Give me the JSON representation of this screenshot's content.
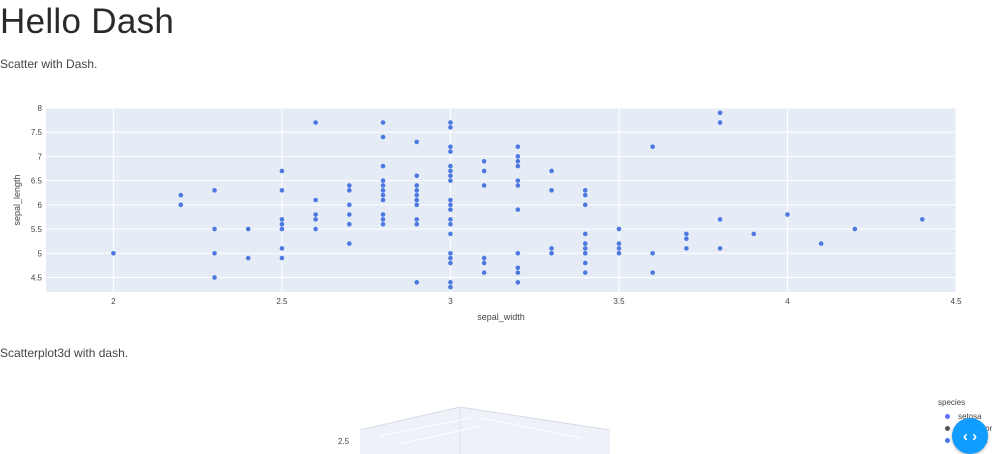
{
  "page": {
    "title": "Hello Dash",
    "subtitle1": "Scatter with Dash.",
    "subtitle2": "Scatterplot3d with dash."
  },
  "chart_data": [
    {
      "type": "scatter",
      "title": "",
      "xlabel": "sepal_width",
      "ylabel": "sepal_length",
      "xlim": [
        1.8,
        4.5
      ],
      "ylim": [
        4.2,
        8.0
      ],
      "x_ticks": [
        2,
        2.5,
        3,
        3.5,
        4,
        4.5
      ],
      "y_ticks": [
        4.5,
        5,
        5.5,
        6,
        6.5,
        7,
        7.5,
        8
      ],
      "grid": true,
      "color": "#4c78e0",
      "points": [
        [
          2.0,
          5.0
        ],
        [
          2.2,
          6.0
        ],
        [
          2.2,
          6.2
        ],
        [
          2.3,
          4.5
        ],
        [
          2.3,
          5.0
        ],
        [
          2.3,
          5.5
        ],
        [
          2.3,
          6.3
        ],
        [
          2.4,
          4.9
        ],
        [
          2.4,
          5.5
        ],
        [
          2.5,
          4.9
        ],
        [
          2.5,
          5.1
        ],
        [
          2.5,
          5.5
        ],
        [
          2.5,
          5.6
        ],
        [
          2.5,
          5.7
        ],
        [
          2.5,
          6.3
        ],
        [
          2.5,
          6.7
        ],
        [
          2.6,
          5.5
        ],
        [
          2.6,
          5.7
        ],
        [
          2.6,
          5.8
        ],
        [
          2.6,
          6.1
        ],
        [
          2.6,
          7.7
        ],
        [
          2.7,
          5.2
        ],
        [
          2.7,
          5.6
        ],
        [
          2.7,
          5.8
        ],
        [
          2.7,
          6.0
        ],
        [
          2.7,
          6.3
        ],
        [
          2.7,
          6.4
        ],
        [
          2.8,
          5.6
        ],
        [
          2.8,
          5.7
        ],
        [
          2.8,
          5.8
        ],
        [
          2.8,
          6.1
        ],
        [
          2.8,
          6.2
        ],
        [
          2.8,
          6.3
        ],
        [
          2.8,
          6.4
        ],
        [
          2.8,
          6.5
        ],
        [
          2.8,
          6.8
        ],
        [
          2.8,
          7.4
        ],
        [
          2.8,
          7.7
        ],
        [
          2.9,
          4.4
        ],
        [
          2.9,
          5.6
        ],
        [
          2.9,
          5.7
        ],
        [
          2.9,
          6.0
        ],
        [
          2.9,
          6.1
        ],
        [
          2.9,
          6.2
        ],
        [
          2.9,
          6.3
        ],
        [
          2.9,
          6.4
        ],
        [
          2.9,
          6.6
        ],
        [
          2.9,
          7.3
        ],
        [
          3.0,
          4.3
        ],
        [
          3.0,
          4.4
        ],
        [
          3.0,
          4.8
        ],
        [
          3.0,
          4.9
        ],
        [
          3.0,
          5.0
        ],
        [
          3.0,
          5.4
        ],
        [
          3.0,
          5.6
        ],
        [
          3.0,
          5.7
        ],
        [
          3.0,
          5.9
        ],
        [
          3.0,
          6.0
        ],
        [
          3.0,
          6.1
        ],
        [
          3.0,
          6.5
        ],
        [
          3.0,
          6.6
        ],
        [
          3.0,
          6.7
        ],
        [
          3.0,
          6.8
        ],
        [
          3.0,
          7.1
        ],
        [
          3.0,
          7.2
        ],
        [
          3.0,
          7.6
        ],
        [
          3.0,
          7.7
        ],
        [
          3.1,
          4.6
        ],
        [
          3.1,
          4.8
        ],
        [
          3.1,
          4.9
        ],
        [
          3.1,
          6.4
        ],
        [
          3.1,
          6.7
        ],
        [
          3.1,
          6.9
        ],
        [
          3.2,
          4.4
        ],
        [
          3.2,
          4.6
        ],
        [
          3.2,
          4.7
        ],
        [
          3.2,
          5.0
        ],
        [
          3.2,
          5.9
        ],
        [
          3.2,
          6.4
        ],
        [
          3.2,
          6.5
        ],
        [
          3.2,
          6.8
        ],
        [
          3.2,
          6.9
        ],
        [
          3.2,
          7.0
        ],
        [
          3.2,
          7.2
        ],
        [
          3.3,
          5.0
        ],
        [
          3.3,
          5.1
        ],
        [
          3.3,
          6.3
        ],
        [
          3.3,
          6.7
        ],
        [
          3.4,
          4.6
        ],
        [
          3.4,
          4.8
        ],
        [
          3.4,
          5.0
        ],
        [
          3.4,
          5.1
        ],
        [
          3.4,
          5.2
        ],
        [
          3.4,
          5.4
        ],
        [
          3.4,
          6.0
        ],
        [
          3.4,
          6.2
        ],
        [
          3.4,
          6.3
        ],
        [
          3.5,
          5.0
        ],
        [
          3.5,
          5.1
        ],
        [
          3.5,
          5.2
        ],
        [
          3.5,
          5.5
        ],
        [
          3.6,
          4.6
        ],
        [
          3.6,
          5.0
        ],
        [
          3.6,
          7.2
        ],
        [
          3.7,
          5.1
        ],
        [
          3.7,
          5.3
        ],
        [
          3.7,
          5.4
        ],
        [
          3.8,
          5.1
        ],
        [
          3.8,
          5.7
        ],
        [
          3.8,
          7.7
        ],
        [
          3.8,
          7.9
        ],
        [
          3.9,
          5.4
        ],
        [
          4.0,
          5.8
        ],
        [
          4.1,
          5.2
        ],
        [
          4.2,
          5.5
        ],
        [
          4.4,
          5.7
        ]
      ]
    },
    {
      "type": "scatter3d",
      "visible_tick": "2.5",
      "legend_title": "species",
      "legend": [
        "setosa",
        "versicolor",
        "virginica"
      ],
      "legend_colors": [
        "#636efa",
        "#555555",
        "#4c78e0"
      ]
    }
  ],
  "toggle": {
    "symbol": "‹ ›"
  }
}
